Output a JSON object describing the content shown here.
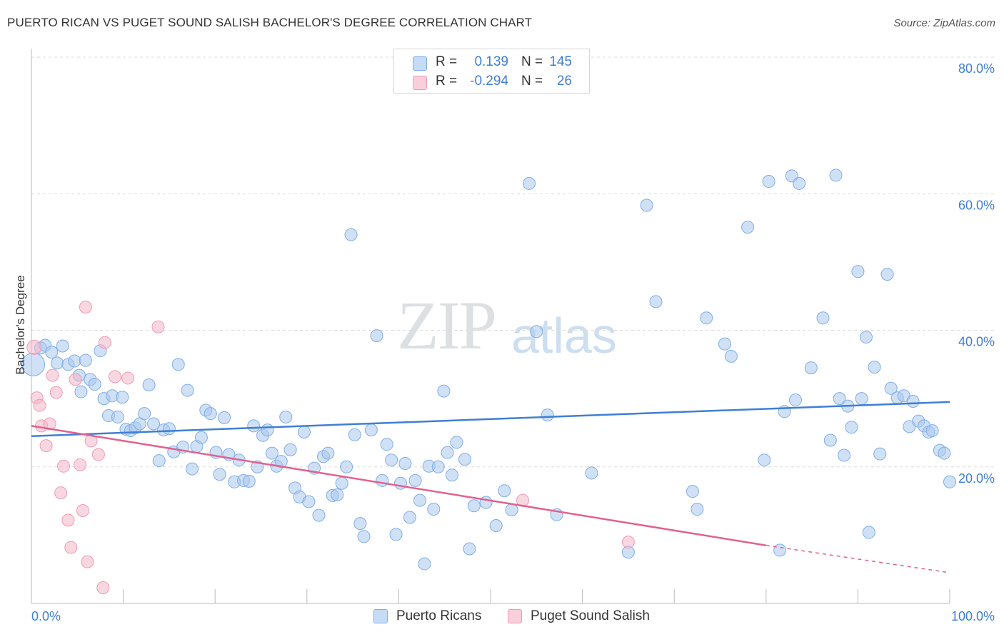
{
  "title": "PUERTO RICAN VS PUGET SOUND SALISH BACHELOR'S DEGREE CORRELATION CHART",
  "source": "Source: ZipAtlas.com",
  "watermark": {
    "zip": "ZIP",
    "atlas": "atlas"
  },
  "legend": {
    "rows": [
      {
        "r_label": "R =",
        "r_value": "0.139",
        "n_label": "N =",
        "n_value": "145",
        "color": "#a9c8ee"
      },
      {
        "r_label": "R =",
        "r_value": "-0.294",
        "n_label": "N =",
        "n_value": "26",
        "color": "#f4b6c8"
      }
    ]
  },
  "bottom_legend": [
    {
      "label": "Puerto Ricans",
      "color": "#a9c8ee"
    },
    {
      "label": "Puget Sound Salish",
      "color": "#f4b6c8"
    }
  ],
  "chart_data": {
    "type": "scatter",
    "title": "PUERTO RICAN VS PUGET SOUND SALISH BACHELOR'S DEGREE CORRELATION CHART",
    "xlabel": "",
    "ylabel": "Bachelor's Degree",
    "xlim": [
      0,
      100
    ],
    "ylim": [
      0,
      80
    ],
    "x_tick_labels": [
      "0.0%",
      "100.0%"
    ],
    "y_ticks": [
      20,
      40,
      60,
      80
    ],
    "y_tick_labels": [
      "20.0%",
      "40.0%",
      "60.0%",
      "80.0%"
    ],
    "grid": true,
    "legend_position": "top-center",
    "colors": {
      "blue": "#3f7fd4",
      "blue_fill": "#a9c8ee",
      "pink": "#e0628f",
      "pink_fill": "#f4b6c8"
    },
    "series": [
      {
        "name": "Puerto Ricans",
        "trend": {
          "x": [
            0,
            100
          ],
          "y": [
            24.5,
            29.5
          ]
        },
        "points": [
          [
            0.2,
            35.0
          ],
          [
            1.0,
            37.4
          ],
          [
            1.5,
            37.8
          ],
          [
            2.2,
            36.8
          ],
          [
            2.8,
            35.2
          ],
          [
            3.4,
            37.7
          ],
          [
            4.0,
            35.0
          ],
          [
            4.7,
            35.5
          ],
          [
            5.2,
            33.4
          ],
          [
            5.9,
            35.6
          ],
          [
            6.4,
            32.8
          ],
          [
            5.4,
            31.0
          ],
          [
            6.9,
            32.1
          ],
          [
            7.5,
            37.0
          ],
          [
            7.9,
            30.0
          ],
          [
            8.4,
            27.5
          ],
          [
            8.8,
            30.4
          ],
          [
            9.4,
            27.3
          ],
          [
            9.9,
            30.2
          ],
          [
            10.3,
            25.5
          ],
          [
            10.8,
            25.3
          ],
          [
            11.3,
            25.7
          ],
          [
            11.8,
            26.3
          ],
          [
            12.3,
            27.8
          ],
          [
            12.8,
            32.0
          ],
          [
            13.3,
            26.3
          ],
          [
            13.9,
            20.9
          ],
          [
            14.4,
            25.4
          ],
          [
            15.0,
            25.6
          ],
          [
            15.5,
            22.2
          ],
          [
            16.0,
            35.0
          ],
          [
            16.5,
            22.9
          ],
          [
            17.0,
            31.2
          ],
          [
            17.5,
            19.7
          ],
          [
            18.0,
            23.0
          ],
          [
            18.5,
            24.3
          ],
          [
            19.0,
            28.3
          ],
          [
            19.5,
            27.8
          ],
          [
            20.1,
            22.1
          ],
          [
            20.5,
            18.9
          ],
          [
            21.0,
            27.2
          ],
          [
            21.5,
            21.8
          ],
          [
            22.1,
            17.8
          ],
          [
            22.6,
            21.0
          ],
          [
            23.1,
            18.0
          ],
          [
            23.7,
            17.9
          ],
          [
            24.2,
            26.0
          ],
          [
            24.6,
            20.0
          ],
          [
            25.2,
            24.6
          ],
          [
            25.7,
            25.4
          ],
          [
            26.2,
            22.0
          ],
          [
            26.7,
            20.1
          ],
          [
            27.2,
            20.8
          ],
          [
            27.7,
            27.3
          ],
          [
            28.2,
            22.5
          ],
          [
            28.7,
            16.9
          ],
          [
            29.2,
            15.6
          ],
          [
            29.7,
            25.1
          ],
          [
            30.2,
            14.9
          ],
          [
            30.8,
            19.8
          ],
          [
            31.3,
            12.9
          ],
          [
            31.8,
            21.5
          ],
          [
            32.3,
            22.0
          ],
          [
            32.8,
            15.8
          ],
          [
            33.3,
            15.9
          ],
          [
            33.8,
            17.6
          ],
          [
            34.3,
            20.0
          ],
          [
            34.8,
            54.0
          ],
          [
            35.2,
            24.7
          ],
          [
            35.8,
            11.7
          ],
          [
            36.2,
            9.8
          ],
          [
            37.0,
            25.4
          ],
          [
            37.6,
            39.2
          ],
          [
            38.2,
            18.0
          ],
          [
            38.7,
            23.3
          ],
          [
            39.2,
            21.0
          ],
          [
            39.7,
            10.1
          ],
          [
            40.2,
            17.6
          ],
          [
            40.7,
            20.5
          ],
          [
            41.2,
            12.6
          ],
          [
            41.8,
            18.0
          ],
          [
            42.3,
            15.1
          ],
          [
            42.8,
            5.8
          ],
          [
            43.3,
            20.1
          ],
          [
            43.8,
            13.8
          ],
          [
            44.3,
            20.0
          ],
          [
            44.9,
            31.1
          ],
          [
            45.3,
            22.1
          ],
          [
            45.8,
            18.8
          ],
          [
            46.3,
            23.6
          ],
          [
            47.2,
            21.1
          ],
          [
            47.7,
            8.0
          ],
          [
            48.2,
            14.3
          ],
          [
            49.5,
            14.8
          ],
          [
            50.6,
            11.4
          ],
          [
            51.5,
            16.5
          ],
          [
            52.3,
            13.7
          ],
          [
            54.2,
            61.5
          ],
          [
            55.0,
            39.8
          ],
          [
            56.2,
            27.6
          ],
          [
            57.2,
            13.0
          ],
          [
            61.0,
            19.1
          ],
          [
            65.0,
            7.5
          ],
          [
            67.0,
            58.3
          ],
          [
            68.0,
            44.2
          ],
          [
            72.0,
            16.4
          ],
          [
            72.5,
            13.8
          ],
          [
            73.5,
            41.8
          ],
          [
            75.5,
            38.0
          ],
          [
            76.2,
            36.2
          ],
          [
            78.0,
            55.1
          ],
          [
            80.3,
            61.8
          ],
          [
            81.5,
            7.8
          ],
          [
            82.0,
            28.1
          ],
          [
            82.8,
            62.6
          ],
          [
            83.6,
            61.5
          ],
          [
            84.9,
            34.5
          ],
          [
            86.2,
            41.8
          ],
          [
            87.0,
            23.9
          ],
          [
            87.6,
            62.7
          ],
          [
            88.0,
            30.0
          ],
          [
            88.5,
            21.7
          ],
          [
            88.9,
            28.9
          ],
          [
            89.3,
            25.8
          ],
          [
            90.0,
            48.6
          ],
          [
            90.4,
            30.0
          ],
          [
            90.9,
            39.0
          ],
          [
            91.2,
            10.4
          ],
          [
            91.8,
            34.6
          ],
          [
            92.4,
            21.9
          ],
          [
            93.2,
            48.2
          ],
          [
            93.6,
            31.5
          ],
          [
            94.3,
            30.1
          ],
          [
            95.0,
            30.4
          ],
          [
            95.6,
            25.9
          ],
          [
            96.0,
            29.6
          ],
          [
            96.6,
            26.7
          ],
          [
            97.2,
            26.0
          ],
          [
            97.7,
            25.1
          ],
          [
            98.1,
            25.3
          ],
          [
            98.9,
            22.4
          ],
          [
            99.4,
            22.0
          ],
          [
            100.0,
            17.8
          ],
          [
            83.2,
            29.8
          ],
          [
            79.8,
            21.0
          ]
        ]
      },
      {
        "name": "Puget Sound Salish",
        "trend": {
          "x": [
            0,
            80
          ],
          "y": [
            26.0,
            8.5
          ],
          "dashed_to": {
            "x": 100,
            "y": 4.5
          }
        },
        "points": [
          [
            0.3,
            37.5
          ],
          [
            0.6,
            30.1
          ],
          [
            0.9,
            29.0
          ],
          [
            1.1,
            26.0
          ],
          [
            1.6,
            23.1
          ],
          [
            2.0,
            26.3
          ],
          [
            2.3,
            33.4
          ],
          [
            2.7,
            30.9
          ],
          [
            3.2,
            16.2
          ],
          [
            3.5,
            20.1
          ],
          [
            4.0,
            12.2
          ],
          [
            4.3,
            8.2
          ],
          [
            4.8,
            32.8
          ],
          [
            5.3,
            20.3
          ],
          [
            5.6,
            13.6
          ],
          [
            5.9,
            43.4
          ],
          [
            6.1,
            6.1
          ],
          [
            6.5,
            23.8
          ],
          [
            7.3,
            21.8
          ],
          [
            7.8,
            2.3
          ],
          [
            8.0,
            38.2
          ],
          [
            9.1,
            33.2
          ],
          [
            10.5,
            33.0
          ],
          [
            13.8,
            40.5
          ],
          [
            53.5,
            15.1
          ],
          [
            65.0,
            9.0
          ]
        ]
      }
    ]
  }
}
